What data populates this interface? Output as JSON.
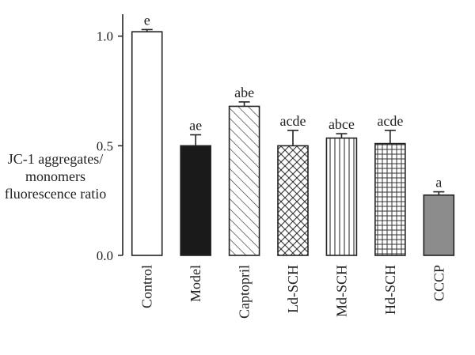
{
  "chart_data": {
    "type": "bar",
    "title": "",
    "xlabel": "",
    "ylabel_lines": [
      "JC-1 aggregates/",
      "monomers",
      "fluorescence ratio"
    ],
    "ylim": [
      0.0,
      1.1
    ],
    "yticks": [
      0.0,
      0.5,
      1.0
    ],
    "ytick_labels": [
      "0.0",
      "0.5",
      "1.0"
    ],
    "grid": false,
    "categories": [
      "Control",
      "Model",
      "Captopril",
      "Ld-SCH",
      "Md-SCH",
      "Hd-SCH",
      "CCCP"
    ],
    "values": [
      1.02,
      0.5,
      0.68,
      0.5,
      0.535,
      0.51,
      0.275
    ],
    "errors": [
      0.01,
      0.05,
      0.02,
      0.07,
      0.02,
      0.06,
      0.015
    ],
    "significance": [
      "e",
      "ae",
      "abe",
      "acde",
      "abce",
      "acde",
      "a"
    ],
    "fills": [
      "white",
      "black",
      "diagonal-hatch",
      "cross-hatch",
      "vertical-lines",
      "grid",
      "gray"
    ],
    "colors": {
      "axis": "#222222",
      "black_bar": "#1a1a1a",
      "gray_bar": "#8c8c8c",
      "hatch": "#333333"
    }
  }
}
